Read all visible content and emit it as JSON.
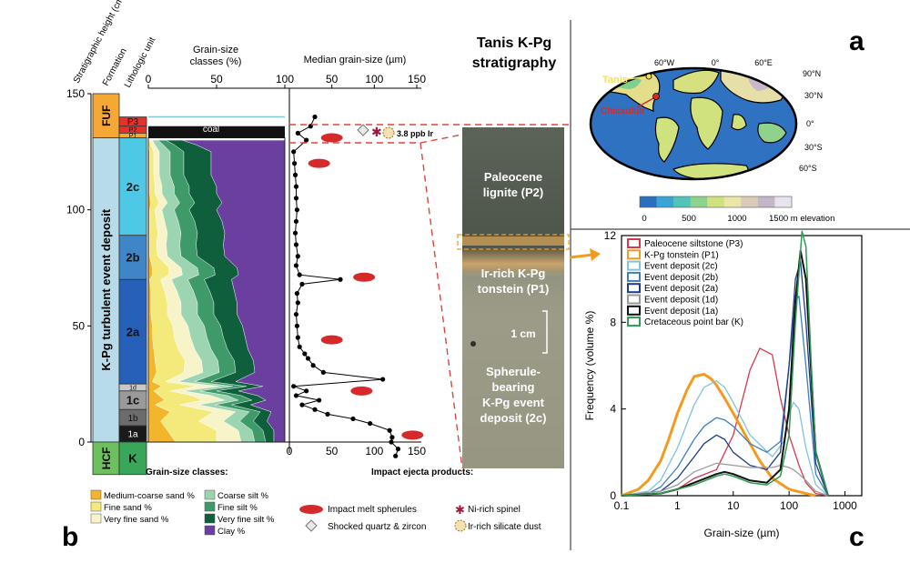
{
  "panels": {
    "a": "a",
    "b": "b",
    "c": "c"
  },
  "strat": {
    "heading_height": "Stratigraphic height (cm)",
    "heading_formation": "Formation",
    "heading_unit": "Lithologic unit",
    "heading_grain_classes": "Grain-size classes (%)",
    "heading_median": "Median grain-size (µm)",
    "height_ticks": [
      0,
      50,
      100,
      150
    ],
    "pct_ticks": [
      0,
      50,
      100
    ],
    "median_ticks_top": [
      100,
      50,
      100,
      150
    ],
    "median_ticks_bottom": [
      0,
      50,
      100,
      150
    ],
    "formations": [
      {
        "label": "FUF",
        "from": 131,
        "to": 150,
        "color": "#f5a833"
      },
      {
        "label": "K-Pg turbulent event deposit",
        "from": 0,
        "to": 131,
        "color": "#b8dbe9"
      },
      {
        "label": "HCF",
        "from": -14,
        "to": 0,
        "color": "#6cc05d"
      }
    ],
    "units": [
      {
        "label": "P3",
        "from": 136,
        "to": 140,
        "color": "#e8302a"
      },
      {
        "label": "P2",
        "from": 133,
        "to": 136,
        "color": "#e8302a"
      },
      {
        "label": "P1",
        "from": 131,
        "to": 133,
        "color": "#f5a833"
      },
      {
        "label": "2c",
        "from": 89,
        "to": 131,
        "color": "#4fc8e6"
      },
      {
        "label": "2b",
        "from": 70,
        "to": 89,
        "color": "#3f86c8"
      },
      {
        "label": "2a",
        "from": 25,
        "to": 70,
        "color": "#2660b8"
      },
      {
        "label": "1d",
        "from": 22,
        "to": 25,
        "color": "#c8c8c8"
      },
      {
        "label": "1c",
        "from": 14,
        "to": 22,
        "color": "#9a9a9a"
      },
      {
        "label": "1b",
        "from": 7,
        "to": 14,
        "color": "#6c6c6c"
      },
      {
        "label": "1a",
        "from": 0,
        "to": 7,
        "color": "#1a1a1a"
      },
      {
        "label": "K",
        "from": -14,
        "to": 0,
        "color": "#3aa65a"
      }
    ],
    "coal_label": "coal",
    "ir_label": "3.8 ppb Ir",
    "legend_title": "Grain-size classes:",
    "legend": [
      {
        "label": "Medium-coarse sand %",
        "color": "#f2b52c"
      },
      {
        "label": "Fine sand %",
        "color": "#f3ea7b"
      },
      {
        "label": "Very fine sand %",
        "color": "#f7f4c9"
      },
      {
        "label": "Coarse silt %",
        "color": "#9dd4b2"
      },
      {
        "label": "Fine silt %",
        "color": "#3f9a6a"
      },
      {
        "label": "Very fine silt %",
        "color": "#0f5f3c"
      },
      {
        "label": "Clay %",
        "color": "#6a3fa0"
      }
    ],
    "ejecta_title": "Impact ejecta products:",
    "ejecta": [
      {
        "label": "Impact melt spherules",
        "icon": "red-ellipse"
      },
      {
        "label": "Shocked quartz & zircon",
        "icon": "diamond"
      },
      {
        "label": "Ni-rich spinel",
        "icon": "star"
      },
      {
        "label": "Ir-rich silicate dust",
        "icon": "dust-circle"
      }
    ]
  },
  "photo": {
    "title_line1": "Tanis K-Pg",
    "title_line2": "stratigraphy",
    "label_p2_1": "Paleocene",
    "label_p2_2": "lignite (P2)",
    "label_p1_1": "Ir-rich K-Pg",
    "label_p1_2": "tonstein (P1)",
    "scale_label": "1 cm",
    "label_2c_1": "Spherule-",
    "label_2c_2": "bearing",
    "label_2c_3": "K-Pg event",
    "label_2c_4": "deposit (2c)"
  },
  "map": {
    "lon_labels": [
      "60°W",
      "0°",
      "60°E"
    ],
    "lat_labels": [
      "90°N",
      "30°N",
      "0°",
      "30°S",
      "60°S"
    ],
    "tanis_label": "Tanis",
    "chicxulub_label": "Chicxulub",
    "colorbar_ticks": [
      "0",
      "500",
      "1000",
      "1500 m elevation"
    ],
    "colorbar_colors": [
      "#2a6fc0",
      "#38a5d6",
      "#53c3b9",
      "#8fd28b",
      "#cfe27e",
      "#ece6a6",
      "#d9cbb7",
      "#c3b6c8",
      "#e8e4ee"
    ]
  },
  "chart_data": [
    {
      "type": "area",
      "panel": "b-left",
      "title": "Grain-size classes (%)",
      "ylabel": "Stratigraphic height (cm)",
      "xlim": [
        0,
        100
      ],
      "ylim": [
        0,
        150
      ],
      "heights": [
        0,
        5,
        9,
        13,
        16,
        18,
        20,
        22,
        24,
        26,
        30,
        35,
        40,
        45,
        50,
        55,
        60,
        65,
        70,
        72,
        75,
        80,
        85,
        90,
        95,
        100,
        103,
        107,
        110,
        115,
        120,
        125,
        128,
        130
      ],
      "series": [
        {
          "name": "Medium-coarse sand %",
          "values": [
            20,
            14,
            9,
            16,
            5,
            12,
            8,
            4,
            10,
            3,
            6,
            5,
            4,
            3,
            3,
            2,
            2,
            2,
            1,
            3,
            3,
            1,
            1,
            1,
            1,
            1,
            2,
            1,
            1,
            1,
            1,
            1,
            0,
            0
          ]
        },
        {
          "name": "Fine sand %",
          "values": [
            30,
            36,
            28,
            32,
            18,
            28,
            24,
            12,
            26,
            10,
            20,
            22,
            18,
            16,
            15,
            12,
            12,
            10,
            8,
            12,
            12,
            6,
            5,
            6,
            5,
            4,
            6,
            4,
            4,
            3,
            3,
            3,
            2,
            1
          ]
        },
        {
          "name": "Very fine sand %",
          "values": [
            18,
            16,
            18,
            16,
            14,
            16,
            14,
            10,
            16,
            9,
            14,
            12,
            12,
            12,
            11,
            10,
            10,
            9,
            8,
            10,
            9,
            7,
            7,
            7,
            6,
            5,
            6,
            5,
            5,
            4,
            4,
            4,
            3,
            2
          ]
        },
        {
          "name": "Coarse silt %",
          "values": [
            10,
            10,
            12,
            10,
            12,
            10,
            12,
            12,
            10,
            12,
            12,
            12,
            12,
            12,
            12,
            12,
            12,
            12,
            12,
            12,
            12,
            10,
            10,
            10,
            10,
            9,
            9,
            9,
            9,
            8,
            8,
            8,
            6,
            4
          ]
        },
        {
          "name": "Fine silt %",
          "values": [
            8,
            8,
            10,
            8,
            12,
            10,
            10,
            12,
            10,
            12,
            12,
            12,
            12,
            12,
            12,
            12,
            12,
            12,
            12,
            12,
            12,
            12,
            12,
            12,
            12,
            11,
            11,
            11,
            11,
            10,
            10,
            10,
            8,
            6
          ]
        },
        {
          "name": "Very fine silt %",
          "values": [
            6,
            8,
            10,
            8,
            14,
            10,
            12,
            16,
            12,
            18,
            14,
            14,
            15,
            16,
            16,
            17,
            17,
            18,
            20,
            17,
            17,
            20,
            20,
            20,
            20,
            20,
            20,
            20,
            20,
            20,
            20,
            20,
            16,
            12
          ]
        },
        {
          "name": "Clay %",
          "values": [
            8,
            8,
            13,
            10,
            25,
            14,
            20,
            34,
            16,
            36,
            22,
            23,
            27,
            29,
            31,
            35,
            35,
            37,
            39,
            34,
            35,
            44,
            45,
            44,
            46,
            50,
            46,
            50,
            50,
            54,
            54,
            54,
            65,
            75
          ]
        }
      ]
    },
    {
      "type": "line",
      "panel": "b-right",
      "title": "Median grain-size (µm)",
      "xlim": [
        0,
        150
      ],
      "ylim": [
        0,
        150
      ],
      "x_label": "Median grain-size (µm)",
      "points": [
        {
          "h": -6,
          "v": 125
        },
        {
          "h": -3,
          "v": 128
        },
        {
          "h": 0,
          "v": 120
        },
        {
          "h": 2,
          "v": 121
        },
        {
          "h": 5,
          "v": 118
        },
        {
          "h": 8,
          "v": 95
        },
        {
          "h": 10,
          "v": 75
        },
        {
          "h": 12,
          "v": 45
        },
        {
          "h": 14,
          "v": 30
        },
        {
          "h": 16,
          "v": 15
        },
        {
          "h": 18,
          "v": 35
        },
        {
          "h": 20,
          "v": 8
        },
        {
          "h": 22,
          "v": 20
        },
        {
          "h": 24,
          "v": 5
        },
        {
          "h": 27,
          "v": 110
        },
        {
          "h": 30,
          "v": 40
        },
        {
          "h": 33,
          "v": 28
        },
        {
          "h": 36,
          "v": 22
        },
        {
          "h": 38,
          "v": 18
        },
        {
          "h": 41,
          "v": 12
        },
        {
          "h": 45,
          "v": 10
        },
        {
          "h": 50,
          "v": 9
        },
        {
          "h": 55,
          "v": 8
        },
        {
          "h": 60,
          "v": 10
        },
        {
          "h": 64,
          "v": 9
        },
        {
          "h": 68,
          "v": 15
        },
        {
          "h": 70,
          "v": 60
        },
        {
          "h": 72,
          "v": 12
        },
        {
          "h": 76,
          "v": 8
        },
        {
          "h": 80,
          "v": 10
        },
        {
          "h": 85,
          "v": 8
        },
        {
          "h": 90,
          "v": 7
        },
        {
          "h": 95,
          "v": 8
        },
        {
          "h": 100,
          "v": 9
        },
        {
          "h": 105,
          "v": 8
        },
        {
          "h": 110,
          "v": 8
        },
        {
          "h": 115,
          "v": 7
        },
        {
          "h": 120,
          "v": 6
        },
        {
          "h": 125,
          "v": 5
        },
        {
          "h": 130,
          "v": 20
        },
        {
          "h": 133,
          "v": 10
        },
        {
          "h": 136,
          "v": 25
        },
        {
          "h": 140,
          "v": 30
        }
      ],
      "spherules": [
        {
          "h": 131,
          "v": 50
        },
        {
          "h": 120,
          "v": 35
        },
        {
          "h": 71,
          "v": 88
        },
        {
          "h": 44,
          "v": 50
        },
        {
          "h": 22,
          "v": 85
        },
        {
          "h": 3,
          "v": 145
        }
      ]
    },
    {
      "type": "line",
      "panel": "c",
      "xlabel": "Grain-size (µm)",
      "ylabel": "Frequency (volume %)",
      "xscale": "log",
      "xlim": [
        0.1,
        2000
      ],
      "ylim": [
        0,
        12
      ],
      "xticks": [
        "0.1",
        "1",
        "10",
        "100",
        "1000"
      ],
      "yticks": [
        "0",
        "4",
        "8",
        "12"
      ],
      "legend_position": "top-left",
      "series": [
        {
          "name": "Paleocene siltstone (P3)",
          "color": "#d63a4a",
          "width": 1.3,
          "x": [
            0.1,
            0.5,
            1,
            2,
            5,
            10,
            20,
            30,
            50,
            70,
            100,
            150,
            200,
            300,
            500
          ],
          "y": [
            0,
            0.1,
            0.3,
            0.8,
            1.2,
            2.8,
            5.8,
            6.8,
            6.5,
            4.5,
            2.8,
            1.4,
            0.6,
            0.1,
            0
          ]
        },
        {
          "name": "K-Pg tonstein (P1)",
          "color": "#f39b1f",
          "width": 3,
          "x": [
            0.1,
            0.2,
            0.3,
            0.5,
            0.7,
            1,
            1.5,
            2,
            3,
            4,
            5,
            7,
            10,
            20,
            30,
            50,
            100,
            200,
            300
          ],
          "y": [
            0,
            0.3,
            0.7,
            1.6,
            2.6,
            3.8,
            4.9,
            5.5,
            5.6,
            5.4,
            5.1,
            4.5,
            3.8,
            2.4,
            1.6,
            0.8,
            0.3,
            0.1,
            0
          ]
        },
        {
          "name": "Event deposit (2c)",
          "color": "#7fc4dc",
          "width": 1.3,
          "x": [
            0.1,
            0.3,
            0.5,
            1,
            2,
            3,
            5,
            7,
            10,
            20,
            50,
            80,
            100,
            120,
            150,
            200,
            300,
            500
          ],
          "y": [
            0,
            0.2,
            0.7,
            2.2,
            4.2,
            5.0,
            5.3,
            5.0,
            4.3,
            2.8,
            1.8,
            2.5,
            3.8,
            4.3,
            4.0,
            2.2,
            0.5,
            0
          ]
        },
        {
          "name": "Event deposit (2b)",
          "color": "#3c7fbc",
          "width": 1.3,
          "x": [
            0.1,
            0.3,
            0.5,
            1,
            2,
            3,
            5,
            7,
            10,
            20,
            40,
            70,
            100,
            130,
            150,
            200,
            300,
            500
          ],
          "y": [
            0,
            0.1,
            0.4,
            1.3,
            2.6,
            3.2,
            3.6,
            3.5,
            3.2,
            2.4,
            2.0,
            2.5,
            6.0,
            9.0,
            9.2,
            6.0,
            1.0,
            0
          ]
        },
        {
          "name": "Event deposit (2a)",
          "color": "#1f3c8a",
          "width": 1.3,
          "x": [
            0.1,
            0.5,
            1,
            2,
            3,
            5,
            7,
            10,
            20,
            40,
            70,
            100,
            130,
            160,
            200,
            300,
            500
          ],
          "y": [
            0,
            0.2,
            0.8,
            1.8,
            2.4,
            2.8,
            2.6,
            2.0,
            1.4,
            1.2,
            2.0,
            6.0,
            10.0,
            10.8,
            8.0,
            1.5,
            0
          ]
        },
        {
          "name": "Event deposit (1d)",
          "color": "#9a9a9a",
          "width": 1.3,
          "x": [
            0.1,
            0.5,
            1,
            2,
            5,
            10,
            20,
            50,
            70,
            100,
            120,
            150,
            200,
            300,
            500
          ],
          "y": [
            0,
            0.2,
            0.5,
            1.1,
            1.5,
            1.4,
            1.3,
            1.3,
            1.4,
            1.3,
            1.2,
            1.0,
            0.7,
            0.2,
            0
          ]
        },
        {
          "name": "Event deposit (1a)",
          "color": "#111111",
          "width": 2,
          "x": [
            0.1,
            0.5,
            1,
            2,
            5,
            7,
            10,
            20,
            40,
            70,
            100,
            130,
            160,
            200,
            300,
            500
          ],
          "y": [
            0,
            0.1,
            0.3,
            0.6,
            1.0,
            1.1,
            1.0,
            0.7,
            0.6,
            1.2,
            4.0,
            9.0,
            11.3,
            10.0,
            2.0,
            0
          ]
        },
        {
          "name": "Cretaceous point bar (K)",
          "color": "#2f9a52",
          "width": 1.5,
          "x": [
            0.1,
            0.5,
            1,
            2,
            5,
            7,
            10,
            20,
            40,
            70,
            100,
            130,
            170,
            200,
            250,
            300,
            500
          ],
          "y": [
            0,
            0.1,
            0.3,
            0.5,
            0.9,
            1.0,
            0.9,
            0.6,
            0.5,
            0.9,
            2.8,
            8.0,
            12.2,
            11.5,
            6.0,
            2.0,
            0
          ]
        }
      ]
    }
  ]
}
